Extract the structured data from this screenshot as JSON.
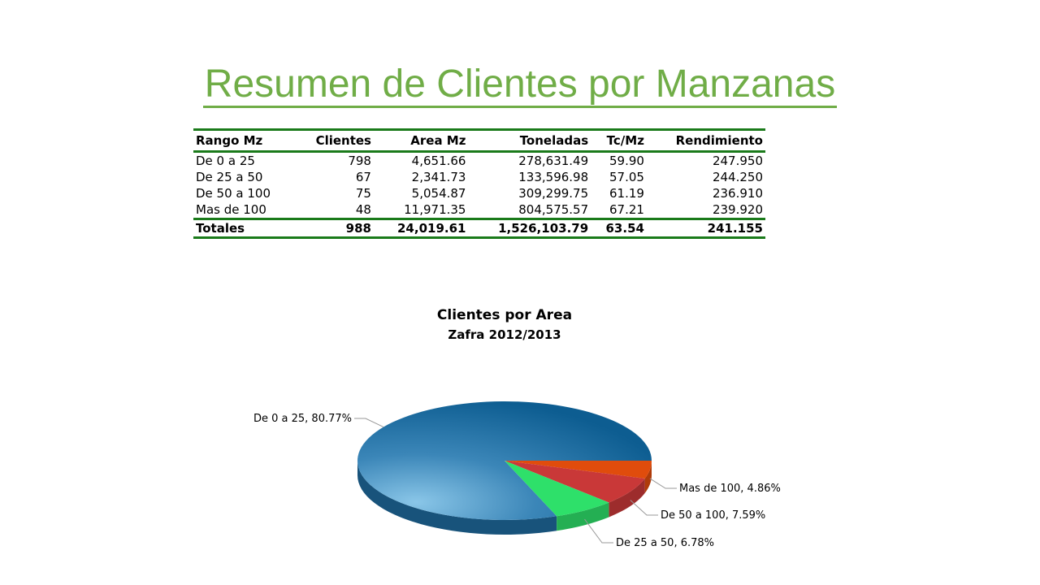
{
  "title": "Resumen de Clientes por Manzanas",
  "table": {
    "headers": [
      "Rango Mz",
      "Clientes",
      "Area Mz",
      "Toneladas",
      "Tc/Mz",
      "Rendimiento"
    ],
    "rows": [
      [
        "De 0 a 25",
        "798",
        "4,651.66",
        "278,631.49",
        "59.90",
        "247.950"
      ],
      [
        "De 25 a 50",
        "67",
        "2,341.73",
        "133,596.98",
        "57.05",
        "244.250"
      ],
      [
        "De 50 a 100",
        "75",
        "5,054.87",
        "309,299.75",
        "61.19",
        "236.910"
      ],
      [
        "Mas de 100",
        "48",
        "11,971.35",
        "804,575.57",
        "67.21",
        "239.920"
      ]
    ],
    "totals": [
      "Totales",
      "988",
      "24,019.61",
      "1,526,103.79",
      "63.54",
      "241.155"
    ]
  },
  "chart_data": {
    "type": "pie",
    "title": "Clientes por Area",
    "subtitle": "Zafra 2012/2013",
    "slices": [
      {
        "label": "De 0 a 25, 80.77%",
        "category": "De 0 a 25",
        "value": 80.77,
        "color": "#1f6b9e"
      },
      {
        "label": "De 25 a 50, 6.78%",
        "category": "De 25 a 50",
        "value": 6.78,
        "color": "#2ee06a"
      },
      {
        "label": "De 50 a 100, 7.59%",
        "category": "De 50 a 100",
        "value": 7.59,
        "color": "#c93838"
      },
      {
        "label": "Mas de 100, 4.86%",
        "category": "Mas de 100",
        "value": 4.86,
        "color": "#e04c0c"
      }
    ]
  }
}
